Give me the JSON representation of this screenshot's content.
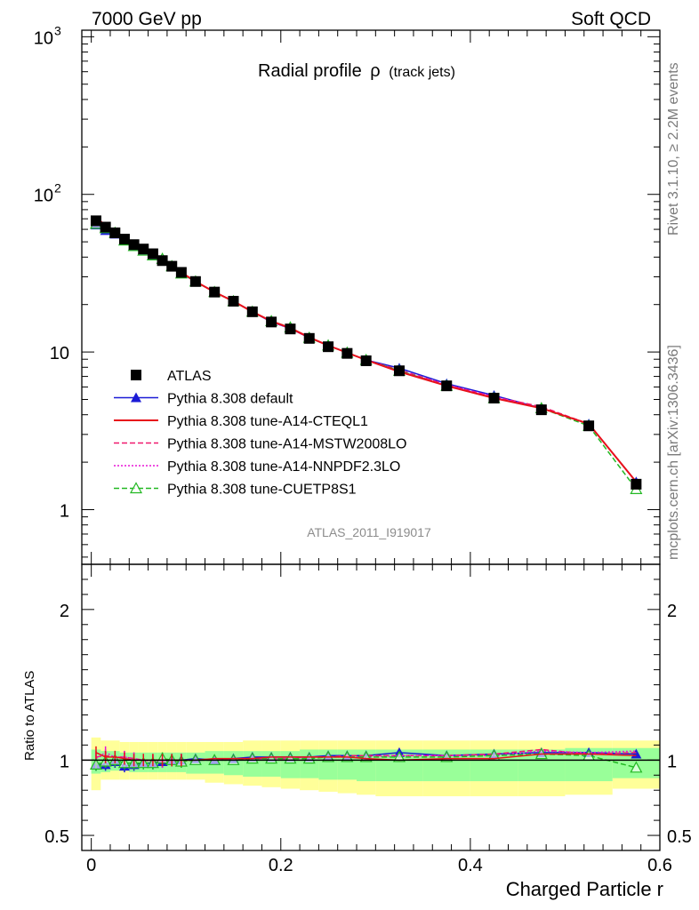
{
  "header": {
    "left": "7000 GeV pp",
    "right": "Soft QCD"
  },
  "side_labels": {
    "rivet": "Rivet 3.1.10, ≥ 2.2M events",
    "source": "mcplots.cern.ch [arXiv:1306.3436]"
  },
  "main_title": {
    "text": "Radial profile",
    "symbol": "ρ",
    "suffix": "(track jets)"
  },
  "analysis_label": "ATLAS_2011_I919017",
  "xlabel": "Charged Particle r",
  "ratio_ylabel": "Ratio to ATLAS",
  "legend": [
    {
      "key": "atlas",
      "label": "ATLAS"
    },
    {
      "key": "default",
      "label": "Pythia 8.308 default"
    },
    {
      "key": "cteql1",
      "label": "Pythia 8.308 tune-A14-CTEQL1"
    },
    {
      "key": "mstw",
      "label": "Pythia 8.308 tune-A14-MSTW2008LO"
    },
    {
      "key": "nnpdf",
      "label": "Pythia 8.308 tune-A14-NNPDF2.3LO"
    },
    {
      "key": "cuetp8s1",
      "label": "Pythia 8.308 tune-CUETP8S1"
    }
  ],
  "chart_data": {
    "type": "line",
    "xlim": [
      -0.01,
      0.6
    ],
    "ylim": [
      0.45,
      1100
    ],
    "yscale": "log",
    "ratio_ylim": [
      0.4,
      2.3
    ],
    "x_ticks": [
      0,
      0.2,
      0.4,
      0.6
    ],
    "x_tick_labels": [
      "0",
      "0.2",
      "0.4",
      "0.6"
    ],
    "y_ticks": [
      {
        "value": 1000,
        "label": "10",
        "sup": "3"
      },
      {
        "value": 100,
        "label": "10",
        "sup": "2"
      },
      {
        "value": 10,
        "label": "10",
        "sup": ""
      },
      {
        "value": 1,
        "label": "1",
        "sup": ""
      }
    ],
    "ratio_ticks": [
      {
        "value": 2,
        "label": "2"
      },
      {
        "value": 1,
        "label": "1"
      },
      {
        "value": 0.5,
        "label": "0.5"
      }
    ],
    "x": [
      0.005,
      0.015,
      0.025,
      0.035,
      0.045,
      0.055,
      0.065,
      0.075,
      0.085,
      0.095,
      0.11,
      0.13,
      0.15,
      0.17,
      0.19,
      0.21,
      0.23,
      0.25,
      0.27,
      0.29,
      0.325,
      0.375,
      0.425,
      0.475,
      0.525,
      0.575
    ],
    "bin_edges": [
      0,
      0.01,
      0.02,
      0.03,
      0.04,
      0.05,
      0.06,
      0.07,
      0.08,
      0.09,
      0.1,
      0.12,
      0.14,
      0.16,
      0.18,
      0.2,
      0.22,
      0.24,
      0.26,
      0.28,
      0.3,
      0.35,
      0.4,
      0.45,
      0.5,
      0.55,
      0.6
    ],
    "band_inner": [
      0.91,
      0.92,
      0.93,
      0.93,
      0.92,
      0.92,
      0.92,
      0.92,
      0.92,
      0.92,
      0.91,
      0.91,
      0.9,
      0.89,
      0.89,
      0.88,
      0.88,
      0.87,
      0.87,
      0.86,
      0.86,
      0.86,
      0.86,
      0.86,
      0.86,
      0.88
    ],
    "band_outer": [
      0.8,
      0.87,
      0.87,
      0.87,
      0.87,
      0.87,
      0.87,
      0.87,
      0.87,
      0.87,
      0.87,
      0.85,
      0.84,
      0.83,
      0.82,
      0.81,
      0.8,
      0.79,
      0.78,
      0.77,
      0.76,
      0.76,
      0.76,
      0.76,
      0.77,
      0.81
    ],
    "band_outer_high": [
      1.15,
      1.13,
      1.13,
      1.12,
      1.12,
      1.12,
      1.12,
      1.12,
      1.12,
      1.12,
      1.12,
      1.12,
      1.12,
      1.13,
      1.13,
      1.13,
      1.13,
      1.13,
      1.13,
      1.13,
      1.13,
      1.13,
      1.13,
      1.13,
      1.13,
      1.13
    ],
    "band_inner_high": [
      1.07,
      1.06,
      1.06,
      1.05,
      1.05,
      1.05,
      1.05,
      1.05,
      1.05,
      1.05,
      1.05,
      1.06,
      1.06,
      1.06,
      1.06,
      1.06,
      1.07,
      1.07,
      1.07,
      1.07,
      1.07,
      1.07,
      1.07,
      1.07,
      1.08,
      1.08
    ],
    "series": [
      {
        "key": "atlas",
        "name": "ATLAS",
        "color": "#000000",
        "style": "square",
        "values": [
          68,
          62,
          57,
          52,
          48,
          45,
          42,
          38,
          35,
          32,
          28,
          24,
          21,
          18,
          15.5,
          14,
          12.2,
          10.8,
          9.8,
          8.8,
          7.6,
          6.1,
          5.1,
          4.3,
          3.4,
          1.45
        ],
        "ratio": [
          1,
          1,
          1,
          1,
          1,
          1,
          1,
          1,
          1,
          1,
          1,
          1,
          1,
          1,
          1,
          1,
          1,
          1,
          1,
          1,
          1,
          1,
          1,
          1,
          1,
          1
        ]
      },
      {
        "key": "default",
        "name": "Pythia 8.308 default",
        "color": "#1b1bd6",
        "style": "solid-triangle",
        "values": [
          64,
          59,
          56,
          51,
          47,
          44,
          41,
          38,
          35,
          31.5,
          28,
          24,
          21,
          18,
          15.5,
          14.1,
          12.3,
          11,
          9.9,
          8.9,
          7.9,
          6.3,
          5.3,
          4.4,
          3.5,
          1.5
        ],
        "ratio": [
          0.97,
          0.97,
          0.99,
          0.96,
          0.97,
          0.98,
          0.98,
          0.99,
          1.0,
          1.0,
          1.01,
          1.0,
          1.01,
          1.02,
          1.02,
          1.02,
          1.02,
          1.03,
          1.03,
          1.03,
          1.05,
          1.03,
          1.04,
          1.05,
          1.05,
          1.04
        ]
      },
      {
        "key": "cteql1",
        "name": "Pythia 8.308 tune-A14-CTEQL1",
        "color": "#e8111b",
        "style": "solid",
        "values": [
          72,
          63,
          58,
          53,
          48,
          45,
          42,
          38,
          35,
          32,
          28,
          24,
          21,
          18,
          15.7,
          14.2,
          12.4,
          11,
          9.9,
          8.9,
          7.5,
          6.1,
          5.1,
          4.4,
          3.5,
          1.5
        ],
        "ratio": [
          1.05,
          1.02,
          1.02,
          1.01,
          1.0,
          1.0,
          1.0,
          1.0,
          1.0,
          1.0,
          1.0,
          1.01,
          1.01,
          1.01,
          1.02,
          1.02,
          1.02,
          1.02,
          1.02,
          1.01,
          1.0,
          1.01,
          1.01,
          1.04,
          1.04,
          1.03
        ]
      },
      {
        "key": "mstw",
        "name": "Pythia 8.308 tune-A14-MSTW2008LO",
        "color": "#f0186e",
        "style": "dashed",
        "values": [
          70,
          64,
          58,
          53,
          48,
          45,
          42,
          38,
          35,
          32,
          28,
          24,
          21,
          18,
          15.6,
          14.1,
          12.3,
          11,
          9.9,
          8.9,
          7.7,
          6.2,
          5.2,
          4.5,
          3.5,
          1.5
        ],
        "ratio": [
          1.02,
          1.03,
          1.02,
          1.02,
          1.01,
          1.0,
          1.0,
          1.0,
          1.0,
          1.0,
          1.0,
          1.0,
          1.01,
          1.01,
          1.01,
          1.01,
          1.02,
          1.02,
          1.03,
          1.03,
          1.03,
          1.03,
          1.04,
          1.07,
          1.04,
          1.05
        ]
      },
      {
        "key": "nnpdf",
        "name": "Pythia 8.308 tune-A14-NNPDF2.3LO",
        "color": "#e815d6",
        "style": "dotted",
        "values": [
          70,
          65,
          58,
          53,
          48,
          45,
          42,
          38,
          35,
          32,
          28,
          24,
          21,
          18,
          15.6,
          14.1,
          12.3,
          11,
          9.9,
          8.9,
          7.6,
          6.2,
          5.2,
          4.4,
          3.5,
          1.5
        ],
        "ratio": [
          1.01,
          1.05,
          1.02,
          1.02,
          1.01,
          1.0,
          0.99,
          0.99,
          1.0,
          1.0,
          1.0,
          1.0,
          1.0,
          1.01,
          1.01,
          1.01,
          1.02,
          1.02,
          1.02,
          1.02,
          1.03,
          1.03,
          1.03,
          1.06,
          1.05,
          1.06
        ]
      },
      {
        "key": "cuetp8s1",
        "name": "Pythia 8.308 tune-CUETP8S1",
        "color": "#22b822",
        "style": "dashed-open-triangle",
        "values": [
          65,
          61,
          57,
          51,
          47,
          44,
          41,
          39,
          35,
          31.5,
          28,
          24,
          21,
          18,
          15.7,
          14.3,
          12.3,
          11,
          9.9,
          8.9,
          7.6,
          6.1,
          5.1,
          4.4,
          3.4,
          1.35
        ],
        "ratio": [
          0.97,
          0.99,
          1.0,
          0.98,
          0.98,
          0.98,
          0.98,
          1.01,
          1.0,
          0.99,
          1.0,
          1.0,
          1.0,
          1.01,
          1.01,
          1.01,
          1.01,
          1.02,
          1.02,
          1.02,
          1.02,
          1.02,
          1.03,
          1.04,
          1.03,
          0.95
        ]
      }
    ]
  }
}
